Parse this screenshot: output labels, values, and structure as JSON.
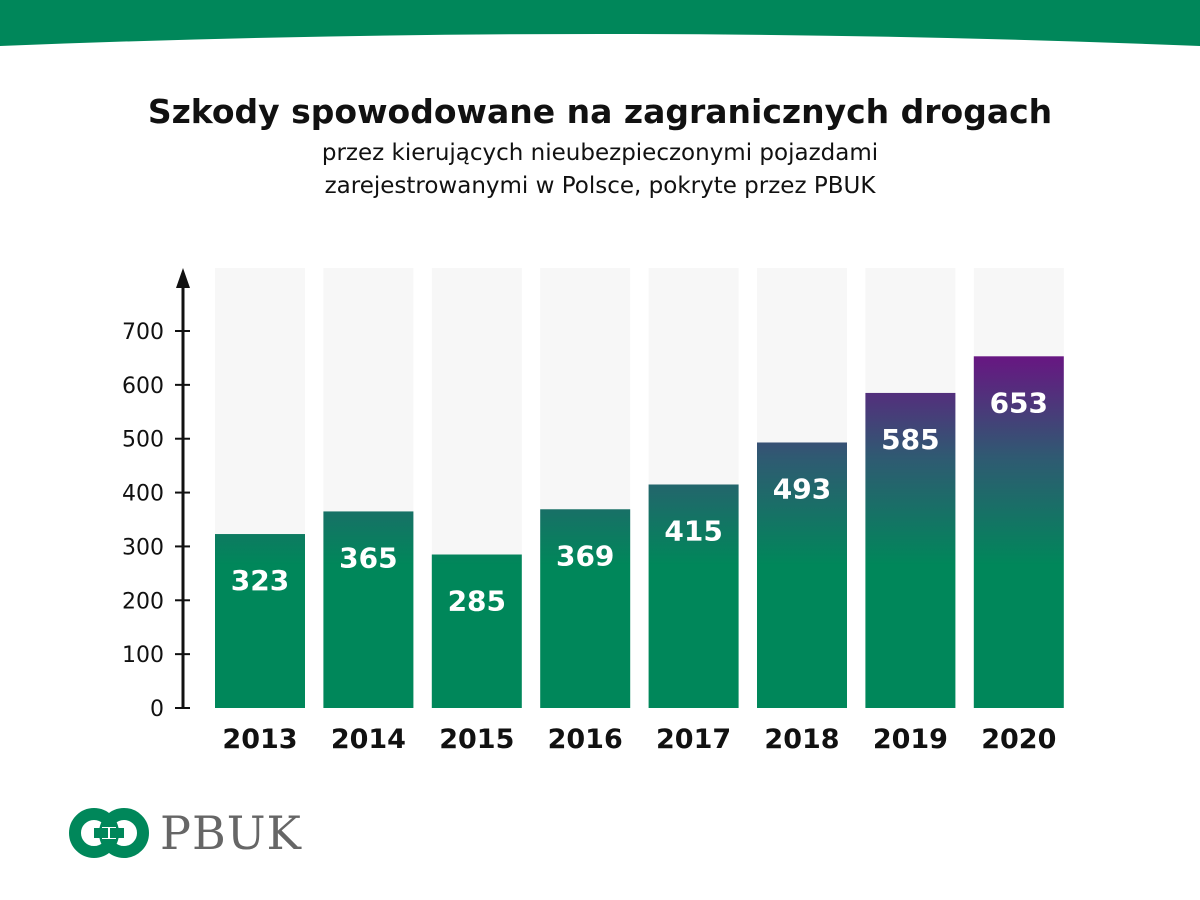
{
  "header": {
    "title": "Szkody spowodowane na zagranicznych drogach",
    "subtitle_line1": "przez kierujących nieubezpieczonymi pojazdami",
    "subtitle_line2": "zarejestrowanymi w Polsce, pokryte przez PBUK"
  },
  "logo": {
    "text": "PBUK"
  },
  "colors": {
    "brand_green": "#00875a",
    "purple": "#6b1283",
    "track": "#f7f7f7"
  },
  "chart_data": {
    "type": "bar",
    "title": "Szkody spowodowane na zagranicznych drogach",
    "categories": [
      "2013",
      "2014",
      "2015",
      "2016",
      "2017",
      "2018",
      "2019",
      "2020"
    ],
    "values": [
      323,
      365,
      285,
      369,
      415,
      493,
      585,
      653
    ],
    "yticks": [
      0,
      100,
      200,
      300,
      400,
      500,
      600,
      700
    ],
    "ylim": [
      0,
      800
    ],
    "xlabel": "",
    "ylabel": "",
    "grid": false
  }
}
